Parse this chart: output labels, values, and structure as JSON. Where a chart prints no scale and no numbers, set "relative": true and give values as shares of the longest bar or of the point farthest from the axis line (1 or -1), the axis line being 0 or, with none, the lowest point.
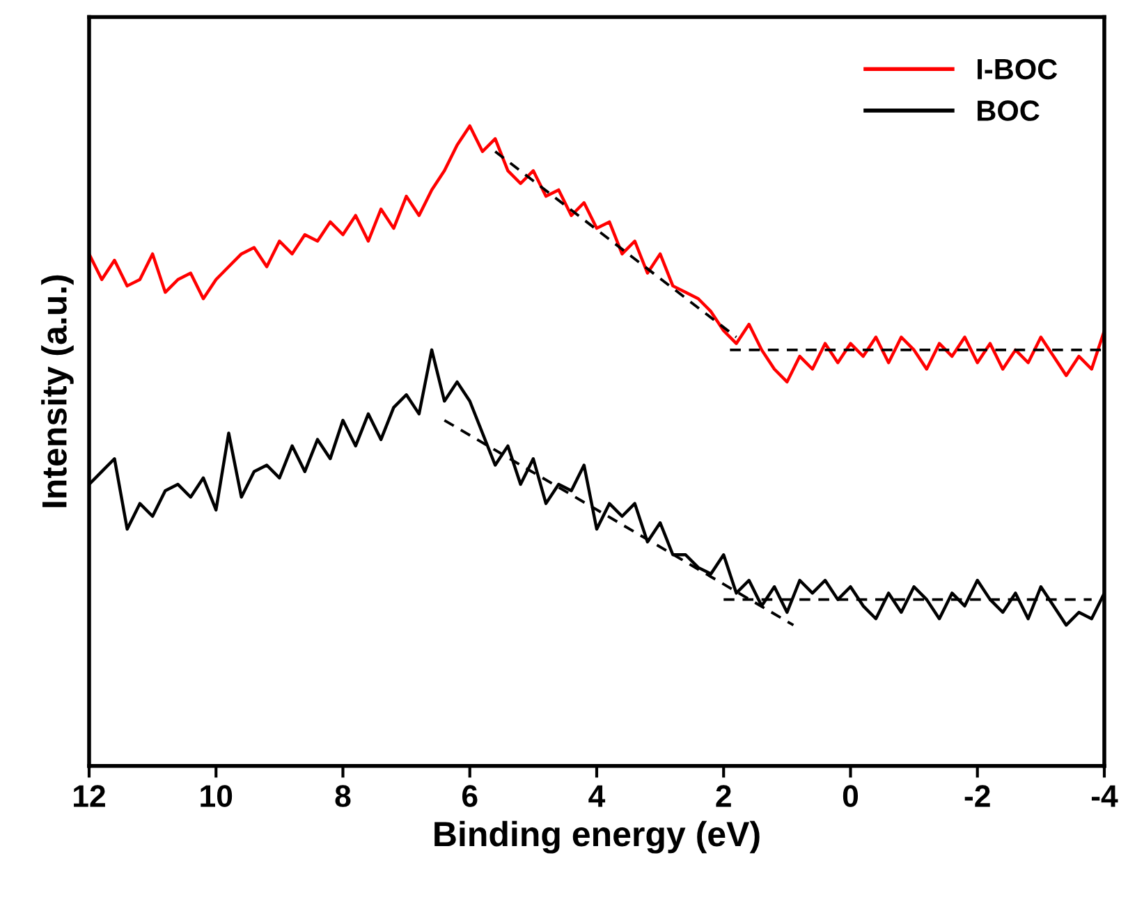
{
  "chart_data": {
    "type": "line",
    "relative": true,
    "xlabel": "Binding energy (eV)",
    "ylabel": "Intensity (a.u.)",
    "xlim": [
      12,
      -4
    ],
    "xticks": [
      12,
      10,
      8,
      6,
      4,
      2,
      0,
      -2,
      -4
    ],
    "tick_labels": "x",
    "grid": false,
    "legend": "top right",
    "marker": "none",
    "x": [
      12,
      11.8,
      11.6,
      11.4,
      11.2,
      11.0,
      10.8,
      10.6,
      10.4,
      10.2,
      10.0,
      9.8,
      9.6,
      9.4,
      9.2,
      9.0,
      8.8,
      8.6,
      8.4,
      8.2,
      8.0,
      7.8,
      7.6,
      7.4,
      7.2,
      7.0,
      6.8,
      6.6,
      6.4,
      6.2,
      6.0,
      5.8,
      5.6,
      5.4,
      5.2,
      5.0,
      4.8,
      4.6,
      4.4,
      4.2,
      4.0,
      3.8,
      3.6,
      3.4,
      3.2,
      3.0,
      2.8,
      2.6,
      2.4,
      2.2,
      2.0,
      1.8,
      1.6,
      1.4,
      1.2,
      1.0,
      0.8,
      0.6,
      0.4,
      0.2,
      0,
      -0.2,
      -0.4,
      -0.6,
      -0.8,
      -1.0,
      -1.2,
      -1.4,
      -1.6,
      -1.8,
      -2.0,
      -2.2,
      -2.4,
      -2.6,
      -2.8,
      -3.0,
      -3.2,
      -3.4,
      -3.6,
      -3.8,
      -4.0
    ],
    "series": [
      {
        "name": "I-BOC",
        "color": "#ff0000",
        "line_style": "solid",
        "values": [
          0.8,
          0.76,
          0.79,
          0.75,
          0.76,
          0.8,
          0.74,
          0.76,
          0.77,
          0.73,
          0.76,
          0.78,
          0.8,
          0.81,
          0.78,
          0.82,
          0.8,
          0.83,
          0.82,
          0.85,
          0.83,
          0.86,
          0.82,
          0.87,
          0.84,
          0.89,
          0.86,
          0.9,
          0.93,
          0.97,
          1.0,
          0.96,
          0.98,
          0.93,
          0.91,
          0.93,
          0.89,
          0.9,
          0.86,
          0.88,
          0.84,
          0.85,
          0.8,
          0.82,
          0.77,
          0.8,
          0.75,
          0.74,
          0.73,
          0.71,
          0.68,
          0.66,
          0.69,
          0.65,
          0.62,
          0.6,
          0.64,
          0.62,
          0.66,
          0.63,
          0.66,
          0.64,
          0.67,
          0.63,
          0.67,
          0.65,
          0.62,
          0.66,
          0.64,
          0.67,
          0.63,
          0.66,
          0.62,
          0.65,
          0.63,
          0.67,
          0.64,
          0.61,
          0.64,
          0.62,
          0.68
        ]
      },
      {
        "name": "BOC",
        "color": "#000000",
        "line_style": "solid",
        "values": [
          0.44,
          0.46,
          0.48,
          0.37,
          0.41,
          0.39,
          0.43,
          0.44,
          0.42,
          0.45,
          0.4,
          0.52,
          0.42,
          0.46,
          0.47,
          0.45,
          0.5,
          0.46,
          0.51,
          0.48,
          0.54,
          0.5,
          0.55,
          0.51,
          0.56,
          0.58,
          0.55,
          0.65,
          0.57,
          0.6,
          0.57,
          0.52,
          0.47,
          0.5,
          0.44,
          0.48,
          0.41,
          0.44,
          0.43,
          0.47,
          0.37,
          0.41,
          0.39,
          0.41,
          0.35,
          0.38,
          0.33,
          0.33,
          0.31,
          0.3,
          0.33,
          0.27,
          0.29,
          0.25,
          0.28,
          0.24,
          0.29,
          0.27,
          0.29,
          0.26,
          0.28,
          0.25,
          0.23,
          0.27,
          0.24,
          0.28,
          0.26,
          0.23,
          0.27,
          0.25,
          0.29,
          0.26,
          0.24,
          0.27,
          0.23,
          0.28,
          0.25,
          0.22,
          0.24,
          0.23,
          0.27
        ]
      },
      {
        "type": "line",
        "color": "#000000",
        "line_style": "dashed",
        "x": [
          5.6,
          1.8
        ],
        "values": [
          0.96,
          0.67
        ]
      },
      {
        "type": "line",
        "color": "#000000",
        "line_style": "dashed",
        "x": [
          1.9,
          -4.0
        ],
        "values": [
          0.65,
          0.65
        ]
      },
      {
        "type": "line",
        "color": "#000000",
        "line_style": "dashed",
        "x": [
          6.4,
          0.9
        ],
        "values": [
          0.54,
          0.22
        ]
      },
      {
        "type": "line",
        "color": "#000000",
        "line_style": "dashed",
        "x": [
          2.0,
          -3.8
        ],
        "values": [
          0.26,
          0.26
        ]
      }
    ]
  }
}
